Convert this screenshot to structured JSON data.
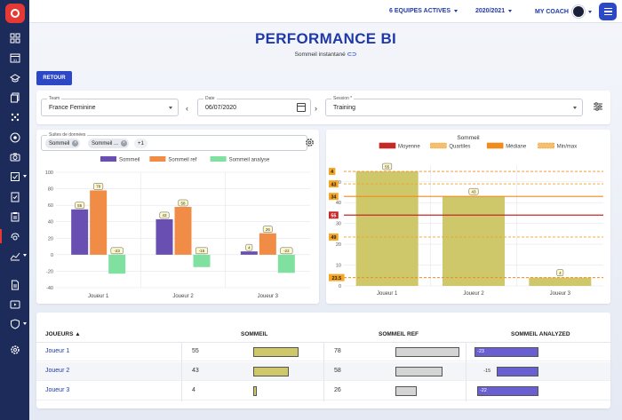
{
  "topbar": {
    "teams_label": "6 EQUIPES ACTIVES",
    "season_label": "2020/2021",
    "coach_label": "MY COACH"
  },
  "page": {
    "title": "PERFORMANCE BI",
    "subtitle": "Sommeil instantané"
  },
  "retour_label": "RETOUR",
  "filters": {
    "team": {
      "label": "Team",
      "value": "France Feminine"
    },
    "date": {
      "label": "Date",
      "value": "06/07/2020"
    },
    "session": {
      "label": "Session *",
      "value": "Training"
    }
  },
  "left_chart_card": {
    "field_label": "Suites de données",
    "chips": [
      "Sommeil",
      "Sommeil ...",
      "+1"
    ]
  },
  "right_chart_card": {
    "title": "Sommeil"
  },
  "chart_data": [
    {
      "type": "bar",
      "categories": [
        "Joueur 1",
        "Joueur 2",
        "Joueur 3"
      ],
      "series": [
        {
          "name": "Sommeil",
          "values": [
            55,
            43,
            4
          ],
          "color": "#6a4fb3"
        },
        {
          "name": "Sommeil ref",
          "values": [
            78,
            58,
            26
          ],
          "color": "#f08c45"
        },
        {
          "name": "Sommeil analyse",
          "values": [
            -23,
            -15,
            -22
          ],
          "color": "#7fe0a0"
        }
      ],
      "data_labels": [
        [
          "55",
          "78",
          "-23"
        ],
        [
          "43",
          "58",
          "-15"
        ],
        [
          "4",
          "26",
          "-22"
        ]
      ],
      "ylim": [
        -40,
        100
      ],
      "yticks": [
        -40,
        -20,
        0,
        20,
        40,
        60,
        80,
        100
      ],
      "grid": true,
      "legend": "top"
    },
    {
      "type": "bar",
      "title": "Sommeil",
      "categories": [
        "Joueur 1",
        "Joueur 2",
        "Joueur 3"
      ],
      "values": [
        55,
        43,
        4
      ],
      "data_labels": [
        "55",
        "43",
        "4"
      ],
      "color": "#cfc86a",
      "ylim": [
        0,
        58
      ],
      "yticks": [
        0,
        10,
        20,
        30,
        40,
        50
      ],
      "reference_lines": [
        {
          "name": "Moyenne",
          "value": 34,
          "color": "#c62828",
          "style": "solid"
        },
        {
          "name": "Quartiles",
          "value": 23.5,
          "color": "#f0a030",
          "style": "dashed"
        },
        {
          "name": "Quartiles",
          "value": 49,
          "color": "#f0a030",
          "style": "dashed"
        },
        {
          "name": "Médiane",
          "value": 43,
          "color": "#f08c1e",
          "style": "solid"
        },
        {
          "name": "Min/max",
          "value": 4,
          "color": "#f08c1e",
          "style": "dashed"
        },
        {
          "name": "Min/max",
          "value": 55,
          "color": "#f08c1e",
          "style": "dashed"
        }
      ],
      "reference_labels": [
        "55",
        "49",
        "43",
        "34",
        "23.5",
        "4"
      ],
      "legend_entries": [
        "Moyenne",
        "Quartiles",
        "Médiane",
        "Min/max"
      ],
      "grid": true,
      "legend": "top"
    }
  ],
  "table": {
    "headers": [
      "JOUEURS ▲",
      "SOMMEIL",
      "SOMMEIL REF",
      "SOMMEIL ANALYZED"
    ],
    "rows": [
      {
        "player": "Joueur 1",
        "sommeil": "55",
        "ref": "78",
        "analyzed": "-23",
        "sommeil_frac": 0.71,
        "ref_frac": 1.0,
        "analyzed_frac": 1.0
      },
      {
        "player": "Joueur 2",
        "sommeil": "43",
        "ref": "58",
        "analyzed": "-15",
        "sommeil_frac": 0.55,
        "ref_frac": 0.74,
        "analyzed_frac": 0.65
      },
      {
        "player": "Joueur 3",
        "sommeil": "4",
        "ref": "26",
        "analyzed": "-22",
        "sommeil_frac": 0.05,
        "ref_frac": 0.33,
        "analyzed_frac": 0.96
      }
    ]
  }
}
